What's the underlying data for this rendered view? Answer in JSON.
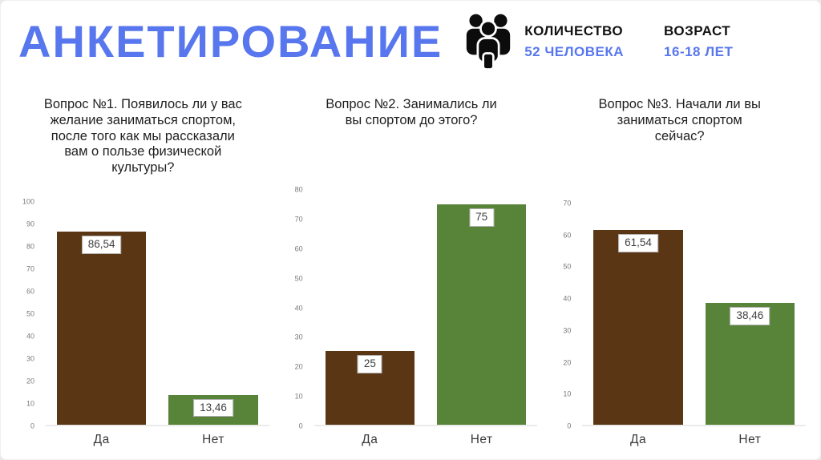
{
  "slide": {
    "title": "АНКЕТИРОВАНИЕ",
    "stats": [
      {
        "label": "КОЛИЧЕСТВО",
        "value": "52 ЧЕЛОВЕКА"
      },
      {
        "label": "ВОЗРАСТ",
        "value": "16-18 ЛЕТ"
      }
    ],
    "icon": "people-group-icon"
  },
  "colors": {
    "accent_blue": "#5877EE",
    "bar_yes_brown": "#5A3614",
    "bar_no_green": "#578438",
    "axis_tick_text": "#7a7a7a",
    "category_text": "#3a3a3a"
  },
  "chart_data": [
    {
      "type": "bar",
      "title": "Вопрос №1. Появилось ли у вас\nжелание заниматься спортом,\nпосле того как мы рассказали\nвам о пользе физической\nкультуры?",
      "categories": [
        "Да",
        "Нет"
      ],
      "values": [
        86.54,
        13.46
      ],
      "value_labels": [
        "86,54",
        "13,46"
      ],
      "bar_colors": [
        "#5A3614",
        "#578438"
      ],
      "ylim": [
        0,
        100
      ],
      "ytick_step": 10,
      "grid": false,
      "legend": false
    },
    {
      "type": "bar",
      "title": "Вопрос №2. Занимались ли\nвы спортом до этого?",
      "categories": [
        "Да",
        "Нет"
      ],
      "values": [
        25,
        75
      ],
      "value_labels": [
        "25",
        "75"
      ],
      "bar_colors": [
        "#5A3614",
        "#578438"
      ],
      "ylim": [
        0,
        80
      ],
      "ytick_step": 10,
      "grid": false,
      "legend": false
    },
    {
      "type": "bar",
      "title": "Вопрос №3. Начали ли вы\nзаниматься спортом\nсейчас?",
      "categories": [
        "Да",
        "Нет"
      ],
      "values": [
        61.54,
        38.46
      ],
      "value_labels": [
        "61,54",
        "38,46"
      ],
      "bar_colors": [
        "#5A3614",
        "#578438"
      ],
      "ylim": [
        0,
        70
      ],
      "ytick_step": 10,
      "grid": false,
      "legend": false
    }
  ]
}
